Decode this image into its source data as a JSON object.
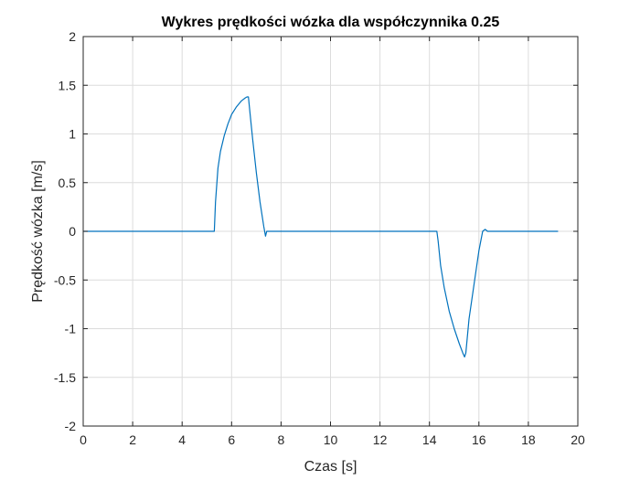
{
  "chart_data": {
    "type": "line",
    "title": "Wykres prędkości wózka dla współczynnika 0.25",
    "xlabel": "Czas [s]",
    "ylabel": "Prędkość wózka [m/s]",
    "xlim": [
      0,
      20
    ],
    "ylim": [
      -2,
      2
    ],
    "xticks": [
      0,
      2,
      4,
      6,
      8,
      10,
      12,
      14,
      16,
      18,
      20
    ],
    "yticks": [
      -2,
      -1.5,
      -1,
      -0.5,
      0,
      0.5,
      1,
      1.5,
      2
    ],
    "xtick_labels": [
      "0",
      "2",
      "4",
      "6",
      "8",
      "10",
      "12",
      "14",
      "16",
      "18",
      "20"
    ],
    "ytick_labels": [
      "-2",
      "-1.5",
      "-1",
      "-0.5",
      "0",
      "0.5",
      "1",
      "1.5",
      "2"
    ],
    "grid": true,
    "line_color": "#0072BD",
    "series": [
      {
        "x": [
          0,
          5.3,
          5.35,
          5.45,
          5.55,
          5.7,
          5.85,
          6.0,
          6.2,
          6.4,
          6.55,
          6.62,
          6.68,
          6.75,
          6.85,
          7.0,
          7.15,
          7.3,
          7.37,
          7.42,
          7.5,
          8.0,
          10.0,
          12.0,
          14.0,
          14.3,
          14.35,
          14.45,
          14.6,
          14.8,
          15.0,
          15.2,
          15.35,
          15.42,
          15.47,
          15.6,
          15.8,
          16.0,
          16.15,
          16.25,
          16.35,
          17.0,
          18.0,
          19.2
        ],
        "y": [
          0,
          0,
          0.3,
          0.65,
          0.82,
          0.98,
          1.1,
          1.2,
          1.28,
          1.34,
          1.37,
          1.38,
          1.38,
          1.2,
          0.95,
          0.6,
          0.3,
          0.05,
          -0.05,
          0,
          0,
          0,
          0,
          0,
          0,
          0,
          -0.1,
          -0.35,
          -0.58,
          -0.82,
          -1.0,
          -1.15,
          -1.25,
          -1.29,
          -1.25,
          -0.9,
          -0.55,
          -0.2,
          0,
          0.02,
          0,
          0,
          0,
          0
        ]
      }
    ]
  }
}
